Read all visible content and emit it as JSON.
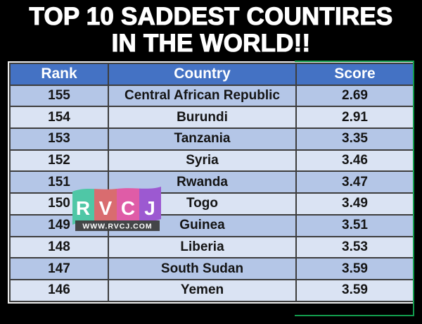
{
  "title": {
    "line1": "TOP 10 SADDEST COUNTIRES",
    "line2": "IN THE WORLD!!"
  },
  "table": {
    "headers": [
      "Rank",
      "Country",
      "Score"
    ],
    "rows": [
      {
        "rank": "155",
        "country": "Central African Republic",
        "score": "2.69"
      },
      {
        "rank": "154",
        "country": "Burundi",
        "score": "2.91"
      },
      {
        "rank": "153",
        "country": "Tanzania",
        "score": "3.35"
      },
      {
        "rank": "152",
        "country": "Syria",
        "score": "3.46"
      },
      {
        "rank": "151",
        "country": "Rwanda",
        "score": "3.47"
      },
      {
        "rank": "150",
        "country": "Togo",
        "score": "3.49"
      },
      {
        "rank": "149",
        "country": "Guinea",
        "score": "3.51"
      },
      {
        "rank": "148",
        "country": "Liberia",
        "score": "3.53"
      },
      {
        "rank": "147",
        "country": "South Sudan",
        "score": "3.59"
      },
      {
        "rank": "146",
        "country": "Yemen",
        "score": "3.59"
      }
    ]
  },
  "watermark": {
    "letters": [
      "R",
      "V",
      "C",
      "J"
    ],
    "url": "WWW.RVCJ.COM",
    "stripe_colors": [
      "#4FC7A6",
      "#D96C6F",
      "#DF5CA7",
      "#9C59D1"
    ],
    "bar_color": "#3B3B3B"
  },
  "colors": {
    "background": "#000000",
    "title_text": "#FFFFFF",
    "header_bg": "#4472C4",
    "header_text": "#FFFFFF",
    "row_dark": "#B4C6E7",
    "row_light": "#DAE3F3",
    "cell_text": "#141414",
    "grid_border": "#3D3D3D",
    "outer_border": "#ECECEC",
    "selection_green": "#129B4C"
  },
  "chart_data": {
    "type": "table",
    "title": "TOP 10 SADDEST COUNTIRES IN THE WORLD!!",
    "columns": [
      "Rank",
      "Country",
      "Score"
    ],
    "rows": [
      [
        155,
        "Central African Republic",
        2.69
      ],
      [
        154,
        "Burundi",
        2.91
      ],
      [
        153,
        "Tanzania",
        3.35
      ],
      [
        152,
        "Syria",
        3.46
      ],
      [
        151,
        "Rwanda",
        3.47
      ],
      [
        150,
        "Togo",
        3.49
      ],
      [
        149,
        "Guinea",
        3.51
      ],
      [
        148,
        "Liberia",
        3.53
      ],
      [
        147,
        "South Sudan",
        3.59
      ],
      [
        146,
        "Yemen",
        3.59
      ]
    ]
  }
}
